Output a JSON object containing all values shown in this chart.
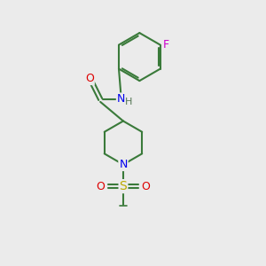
{
  "background_color": "#ebebeb",
  "bond_color": "#3a7a3a",
  "atom_colors": {
    "N": "#0000ee",
    "O": "#dd0000",
    "F": "#cc00cc",
    "S": "#bbaa00",
    "C": "#000000"
  },
  "figsize": [
    3.0,
    3.0
  ],
  "dpi": 100
}
